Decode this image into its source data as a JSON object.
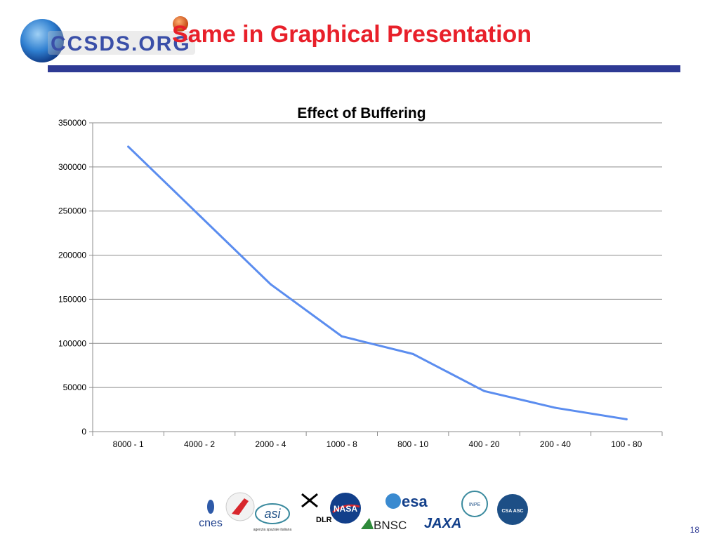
{
  "header": {
    "logo_text": "CCSDS.ORG",
    "title": "Same in Graphical Presentation",
    "accent_color": "#e8202a",
    "bar_color": "#2e3a94"
  },
  "chart_data": {
    "type": "line",
    "title": "Effect of Buffering",
    "categories": [
      "8000 - 1",
      "4000 - 2",
      "2000 - 4",
      "1000 - 8",
      "800 - 10",
      "400 - 20",
      "200 - 40",
      "100 - 80"
    ],
    "series": [
      {
        "values": [
          323000,
          245000,
          167000,
          108000,
          88000,
          46000,
          27000,
          14000
        ],
        "color": "#5b8def"
      }
    ],
    "ylim": [
      0,
      350000
    ],
    "yticks": [
      0,
      50000,
      100000,
      150000,
      200000,
      250000,
      300000,
      350000
    ],
    "grid": true,
    "legend": "none"
  },
  "footer": {
    "agencies": [
      "cnes",
      "asi",
      "DLR",
      "NASA",
      "esa",
      "BNSC",
      "JAXA",
      "INPE",
      "CSA ASC"
    ],
    "asi_caption": "agenzia spaziale italiana",
    "page_number": "18"
  }
}
